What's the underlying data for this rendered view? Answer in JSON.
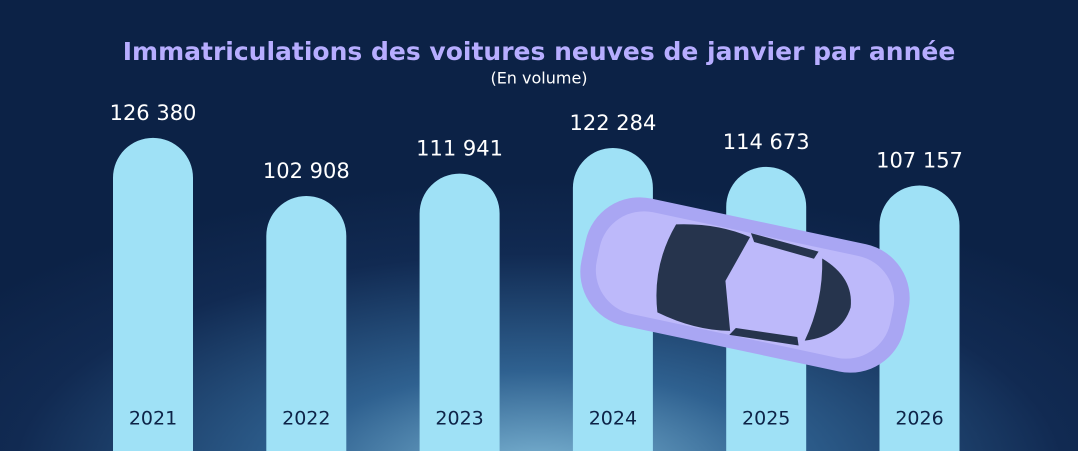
{
  "chart_data": {
    "type": "bar",
    "title": "Immatriculations des voitures neuves de janvier par année",
    "subtitle": "(En volume)",
    "categories": [
      "2021",
      "2022",
      "2023",
      "2024",
      "2025",
      "2026"
    ],
    "values": [
      126380,
      102908,
      111941,
      122284,
      114673,
      107157
    ],
    "value_labels": [
      "126 380",
      "102 908",
      "111 941",
      "122 284",
      "114 673",
      "107 157"
    ],
    "color": "#9fe1f6",
    "title_color": "#b7adff"
  }
}
